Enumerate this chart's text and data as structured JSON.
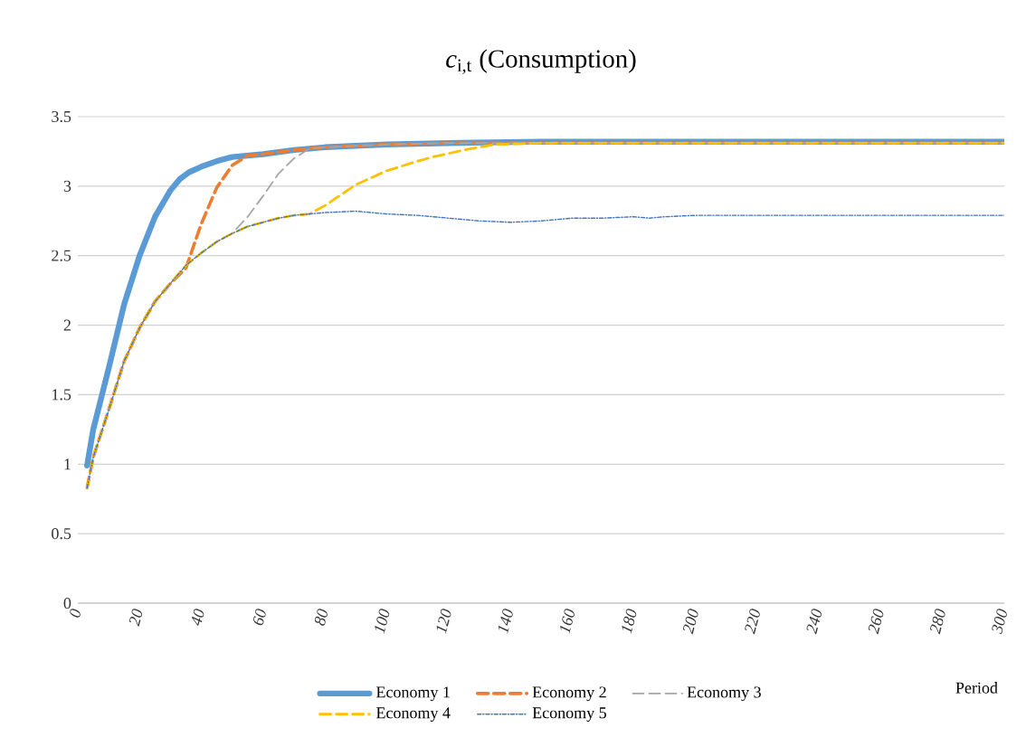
{
  "chart_data": {
    "type": "line",
    "title": "*c*$_{i,t}$ (Consumption)",
    "xlabel": "Period",
    "xlim": [
      0,
      300
    ],
    "ylim": [
      0,
      3.5
    ],
    "xticks": [
      0,
      20,
      40,
      60,
      80,
      100,
      120,
      140,
      160,
      180,
      200,
      220,
      240,
      260,
      280,
      300
    ],
    "yticks": [
      0,
      0.5,
      1,
      1.5,
      2,
      2.5,
      3,
      3.5
    ],
    "grid": "y",
    "legend": "bottom",
    "series": [
      {
        "name": "Economy 1",
        "color": "#5b9bd5",
        "line_style": "solid",
        "x": [
          3,
          5,
          10,
          15,
          20,
          25,
          30,
          33,
          36,
          40,
          45,
          50,
          60,
          70,
          80,
          100,
          120,
          150,
          200,
          250,
          300
        ],
        "values": [
          0.99,
          1.25,
          1.69,
          2.15,
          2.5,
          2.78,
          2.97,
          3.05,
          3.1,
          3.14,
          3.18,
          3.21,
          3.23,
          3.26,
          3.28,
          3.3,
          3.31,
          3.32,
          3.32,
          3.32,
          3.32
        ]
      },
      {
        "name": "Economy 2",
        "color": "#ed7d31",
        "line_style": "dashed",
        "x": [
          3,
          5,
          10,
          15,
          20,
          25,
          30,
          35,
          40,
          45,
          50,
          55,
          60,
          70,
          80,
          100,
          120,
          150,
          200,
          300
        ],
        "values": [
          0.83,
          1.05,
          1.39,
          1.74,
          1.98,
          2.17,
          2.3,
          2.41,
          2.73,
          2.99,
          3.15,
          3.22,
          3.23,
          3.26,
          3.28,
          3.3,
          3.31,
          3.31,
          3.31,
          3.31
        ]
      },
      {
        "name": "Economy 3",
        "color": "#a5a5a5",
        "line_style": "dashed",
        "x": [
          3,
          5,
          10,
          15,
          20,
          25,
          30,
          35,
          40,
          45,
          50,
          55,
          60,
          65,
          70,
          75,
          80,
          100,
          120,
          200,
          300
        ],
        "values": [
          0.83,
          1.05,
          1.39,
          1.74,
          1.98,
          2.17,
          2.3,
          2.43,
          2.52,
          2.6,
          2.66,
          2.78,
          2.93,
          3.09,
          3.2,
          3.27,
          3.28,
          3.3,
          3.31,
          3.31,
          3.31
        ]
      },
      {
        "name": "Economy 4",
        "color": "#ffc000",
        "line_style": "dashed",
        "x": [
          3,
          5,
          10,
          15,
          20,
          25,
          30,
          35,
          40,
          45,
          50,
          55,
          60,
          65,
          70,
          75,
          80,
          90,
          100,
          110,
          115,
          125,
          135,
          150,
          200,
          300
        ],
        "values": [
          0.83,
          1.05,
          1.39,
          1.74,
          1.98,
          2.17,
          2.3,
          2.43,
          2.52,
          2.6,
          2.66,
          2.71,
          2.74,
          2.77,
          2.79,
          2.8,
          2.86,
          3.01,
          3.11,
          3.18,
          3.21,
          3.26,
          3.3,
          3.31,
          3.31,
          3.31
        ]
      },
      {
        "name": "Economy 5",
        "color": "#4472c4",
        "line_style": "dotted",
        "x": [
          3,
          5,
          10,
          15,
          20,
          25,
          30,
          35,
          40,
          45,
          50,
          55,
          60,
          65,
          70,
          75,
          80,
          90,
          100,
          110,
          120,
          130,
          140,
          150,
          160,
          170,
          180,
          185,
          190,
          200,
          220,
          240,
          260,
          280,
          300
        ],
        "values": [
          0.83,
          1.05,
          1.39,
          1.74,
          1.98,
          2.17,
          2.3,
          2.43,
          2.52,
          2.6,
          2.66,
          2.71,
          2.74,
          2.77,
          2.79,
          2.8,
          2.81,
          2.82,
          2.8,
          2.79,
          2.77,
          2.75,
          2.74,
          2.75,
          2.77,
          2.77,
          2.78,
          2.77,
          2.78,
          2.79,
          2.79,
          2.79,
          2.79,
          2.79,
          2.79
        ]
      }
    ]
  }
}
